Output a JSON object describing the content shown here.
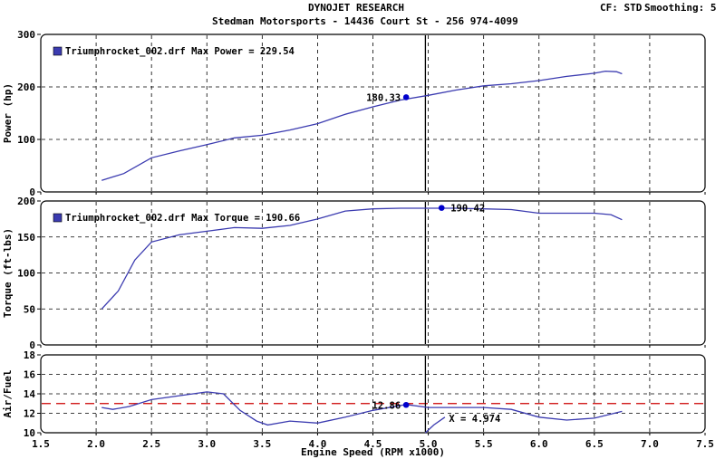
{
  "header": {
    "title": "DYNOJET RESEARCH",
    "subtitle": "Stedman Motorsports - 14436 Court St  - 256 974-4099",
    "cf": "CF: STD",
    "smoothing": "Smoothing: 5"
  },
  "colors": {
    "trace": "#3b3bb0",
    "marker": "#0000cc",
    "afr_target": "#cc0000",
    "grid": "#000000",
    "legend_box": "#3b3bb0"
  },
  "chart_data": [
    {
      "type": "line",
      "ylabel": "Power (hp)",
      "xlabel": "",
      "xlim": [
        1.5,
        7.5
      ],
      "ylim": [
        0,
        300
      ],
      "xticks": [
        1.5,
        2.0,
        2.5,
        3.0,
        3.5,
        4.0,
        4.5,
        5.0,
        5.5,
        6.0,
        6.5,
        7.0,
        7.5
      ],
      "yticks": [
        0,
        100,
        200,
        300
      ],
      "grid": true,
      "legend": "Triumphrocket_002.drf Max Power = 229.54",
      "legend_placement": "top-left",
      "cursor_x": 4.974,
      "series": [
        {
          "x": [
            2.05,
            2.25,
            2.5,
            2.75,
            3.0,
            3.25,
            3.5,
            3.75,
            4.0,
            4.25,
            4.5,
            4.75,
            5.0,
            5.25,
            5.5,
            5.75,
            6.0,
            6.25,
            6.5,
            6.6,
            6.7,
            6.75
          ],
          "values": [
            22,
            35,
            65,
            78,
            90,
            103,
            108,
            118,
            130,
            148,
            162,
            175,
            184,
            194,
            202,
            206,
            212,
            220,
            226,
            230,
            229,
            225
          ]
        }
      ],
      "marker": {
        "x": 4.8,
        "y": 180.33,
        "label": "180.33"
      }
    },
    {
      "type": "line",
      "ylabel": "Torque (ft-lbs)",
      "xlabel": "",
      "xlim": [
        1.5,
        7.5
      ],
      "ylim": [
        0,
        200
      ],
      "xticks": [
        1.5,
        2.0,
        2.5,
        3.0,
        3.5,
        4.0,
        4.5,
        5.0,
        5.5,
        6.0,
        6.5,
        7.0,
        7.5
      ],
      "yticks": [
        0,
        50,
        100,
        150,
        200
      ],
      "grid": true,
      "legend": "Triumphrocket_002.drf Max Torque = 190.66",
      "legend_placement": "top-left",
      "cursor_x": 4.974,
      "series": [
        {
          "x": [
            2.05,
            2.2,
            2.35,
            2.5,
            2.75,
            3.0,
            3.25,
            3.5,
            3.75,
            4.0,
            4.25,
            4.5,
            4.75,
            5.0,
            5.25,
            5.5,
            5.75,
            6.0,
            6.25,
            6.5,
            6.65,
            6.75
          ],
          "values": [
            50,
            75,
            118,
            143,
            153,
            158,
            163,
            162,
            166,
            175,
            186,
            189,
            190,
            190,
            190,
            189,
            188,
            183,
            183,
            183,
            181,
            174
          ]
        }
      ],
      "marker": {
        "x": 5.12,
        "y": 190.42,
        "label": "190.42"
      }
    },
    {
      "type": "line",
      "ylabel": "Air/Fuel",
      "xlabel": "Engine Speed (RPM x1000)",
      "xlim": [
        1.5,
        7.5
      ],
      "ylim": [
        10,
        18
      ],
      "xticks": [
        1.5,
        2.0,
        2.5,
        3.0,
        3.5,
        4.0,
        4.5,
        5.0,
        5.5,
        6.0,
        6.5,
        7.0,
        7.5
      ],
      "yticks": [
        10,
        12,
        14,
        16,
        18
      ],
      "grid": true,
      "target_afr": 13,
      "cursor_x": 4.974,
      "cursor_label": "X = 4.974",
      "series": [
        {
          "x": [
            2.05,
            2.15,
            2.3,
            2.5,
            2.75,
            3.0,
            3.15,
            3.3,
            3.45,
            3.55,
            3.75,
            4.0,
            4.25,
            4.5,
            4.8,
            5.0,
            5.25,
            5.5,
            5.75,
            6.0,
            6.25,
            6.5,
            6.75
          ],
          "values": [
            12.6,
            12.4,
            12.7,
            13.4,
            13.8,
            14.2,
            14.0,
            12.3,
            11.2,
            10.8,
            11.2,
            11.0,
            11.6,
            12.3,
            12.9,
            12.6,
            12.6,
            12.6,
            12.4,
            11.6,
            11.3,
            11.5,
            12.2
          ]
        },
        {
          "x": [
            4.974,
            5.05,
            5.15
          ],
          "values": [
            10.0,
            10.8,
            11.6
          ]
        }
      ],
      "marker": {
        "x": 4.8,
        "y": 12.86,
        "label": "12.86"
      }
    }
  ]
}
